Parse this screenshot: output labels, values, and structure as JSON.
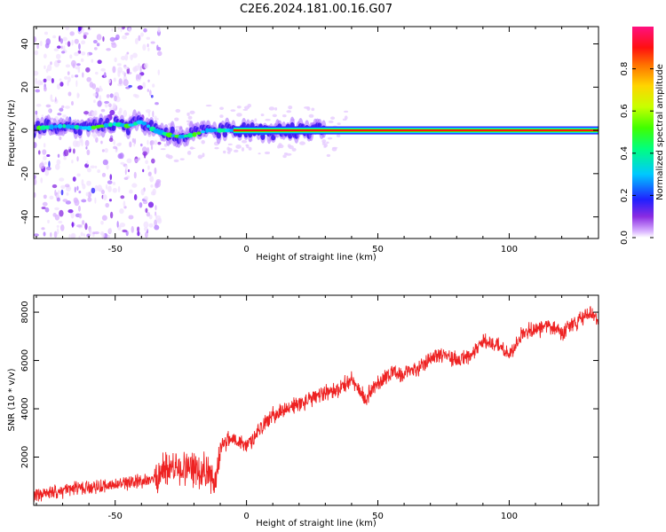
{
  "title": "C2E6.2024.181.00.16.G07",
  "chart_data": [
    {
      "type": "heatmap",
      "xlabel": "Height of straight line (km)",
      "ylabel": "Frequency (Hz)",
      "xlim": [
        -81,
        134
      ],
      "ylim": [
        -50,
        48
      ],
      "xticks": [
        -50,
        0,
        50,
        100
      ],
      "yticks": [
        -40,
        -20,
        0,
        20,
        40
      ],
      "ridge": [
        {
          "x": -80,
          "y": 1
        },
        {
          "x": -70,
          "y": 2
        },
        {
          "x": -60,
          "y": 1
        },
        {
          "x": -50,
          "y": 3
        },
        {
          "x": -45,
          "y": 2
        },
        {
          "x": -40,
          "y": 4
        },
        {
          "x": -35,
          "y": 0
        },
        {
          "x": -30,
          "y": -2
        },
        {
          "x": -25,
          "y": -3
        },
        {
          "x": -20,
          "y": -2
        },
        {
          "x": -15,
          "y": 0
        },
        {
          "x": -10,
          "y": 0
        },
        {
          "x": -5,
          "y": 0
        },
        {
          "x": 0,
          "y": 0
        },
        {
          "x": 5,
          "y": -1
        },
        {
          "x": 10,
          "y": -1
        },
        {
          "x": 15,
          "y": 0
        },
        {
          "x": 20,
          "y": 0
        },
        {
          "x": 134,
          "y": 0
        }
      ],
      "colorbar": {
        "label": "Normalized spectral amplitude",
        "range": [
          0,
          1
        ],
        "ticks": [
          0.0,
          0.2,
          0.4,
          0.6,
          0.8
        ],
        "tick_labels": [
          "0.0",
          "0.2",
          "0.4",
          "0.6",
          "0.8"
        ]
      }
    },
    {
      "type": "line",
      "xlabel": "Height of straight line (km)",
      "ylabel": "SNR (10 * v/v)",
      "xlim": [
        -81,
        134
      ],
      "ylim": [
        0,
        8700
      ],
      "xticks": [
        -50,
        0,
        50,
        100
      ],
      "yticks": [
        2000,
        4000,
        6000,
        8000
      ],
      "series": [
        {
          "color": "#ee2222",
          "x": [
            -81,
            -75,
            -70,
            -65,
            -60,
            -55,
            -50,
            -45,
            -40,
            -35,
            -30,
            -25,
            -20,
            -15,
            -12,
            -10,
            -5,
            0,
            5,
            10,
            15,
            20,
            25,
            30,
            35,
            40,
            45,
            50,
            55,
            60,
            65,
            70,
            75,
            80,
            85,
            90,
            95,
            100,
            105,
            110,
            115,
            120,
            125,
            130,
            134
          ],
          "y": [
            400,
            500,
            600,
            700,
            750,
            800,
            850,
            900,
            1000,
            1100,
            1600,
            1500,
            1500,
            1500,
            700,
            2500,
            2800,
            2400,
            3200,
            3700,
            4000,
            4200,
            4400,
            4700,
            4800,
            5200,
            4400,
            5100,
            5500,
            5400,
            5700,
            6100,
            6300,
            6000,
            6100,
            6800,
            6700,
            6200,
            7100,
            7300,
            7400,
            7100,
            7500,
            8000,
            7700
          ]
        }
      ]
    }
  ]
}
